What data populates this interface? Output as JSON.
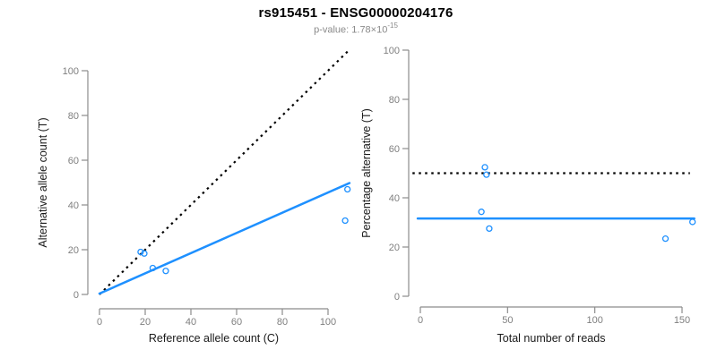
{
  "header": {
    "title": "rs915451 - ENSG00000204176",
    "p_value_text": "p-value: 1.78×10",
    "p_value_exponent": "-15"
  },
  "colors": {
    "accent_blue": "#1E90FF",
    "axis_line": "#8C8C8C",
    "tick_label": "#7F7F7F",
    "axis_title": "#1A1A1A",
    "dotted_line": "#000000"
  },
  "chart_data": [
    {
      "type": "scatter",
      "panel": "allele-counts",
      "title": "",
      "xlabel": "Reference allele count (C)",
      "ylabel": "Alternative allele count (T)",
      "xlim": [
        0,
        100
      ],
      "ylim": [
        0,
        100
      ],
      "xticks": [
        0,
        20,
        40,
        60,
        80,
        100
      ],
      "yticks": [
        0,
        20,
        40,
        60,
        80,
        100
      ],
      "grid": false,
      "legend": null,
      "points": [
        [
          18,
          19
        ],
        [
          19.6,
          18.3
        ],
        [
          23.3,
          11.8
        ],
        [
          29,
          10.5
        ],
        [
          107.5,
          33
        ],
        [
          108.5,
          47
        ]
      ],
      "lines": [
        {
          "name": "identity-line",
          "style": "dotted",
          "color": "#000000",
          "from": [
            0,
            0
          ],
          "to": [
            109.6,
            109.6
          ]
        },
        {
          "name": "regression-line",
          "style": "solid",
          "color": "#1E90FF",
          "from": [
            0,
            0.4
          ],
          "to": [
            109.4,
            49.8
          ]
        }
      ]
    },
    {
      "type": "scatter",
      "panel": "percentage-vs-reads",
      "title": "",
      "xlabel": "Total number of reads",
      "ylabel": "Percentage alternative (T)",
      "xlim": [
        0,
        150
      ],
      "ylim": [
        0,
        100
      ],
      "xticks": [
        0,
        50,
        100,
        150
      ],
      "yticks": [
        0,
        20,
        40,
        60,
        80,
        100
      ],
      "grid": false,
      "legend": null,
      "points": [
        [
          37,
          52.4
        ],
        [
          37.9,
          49.4
        ],
        [
          35,
          34.3
        ],
        [
          39.5,
          27.5
        ],
        [
          140.5,
          23.4
        ],
        [
          156,
          30.2
        ]
      ],
      "lines": [
        {
          "name": "fifty-percent-line",
          "style": "dotted",
          "color": "#000000",
          "from": [
            -4.5,
            50
          ],
          "to": [
            154.5,
            50
          ]
        },
        {
          "name": "mean-percentage-line",
          "style": "solid",
          "color": "#1E90FF",
          "from": [
            -1.5,
            31.6
          ],
          "to": [
            157,
            31.6
          ]
        }
      ]
    }
  ]
}
